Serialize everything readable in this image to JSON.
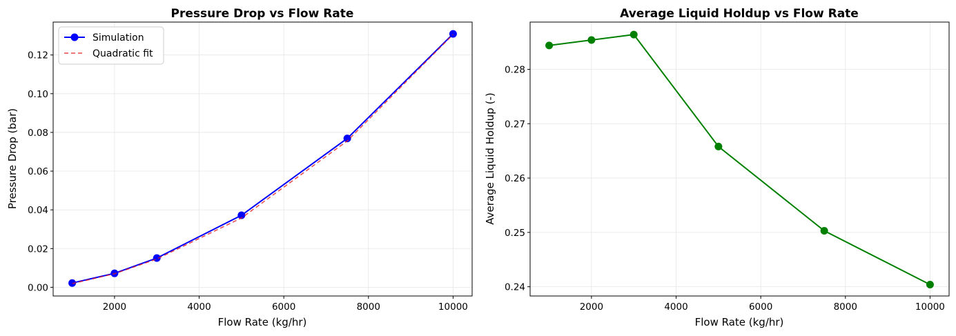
{
  "chart_data": [
    {
      "type": "line",
      "title": "Pressure Drop vs Flow Rate",
      "xlabel": "Flow Rate (kg/hr)",
      "ylabel": "Pressure Drop (bar)",
      "xlim": [
        550,
        10450
      ],
      "ylim": [
        -0.0045,
        0.137
      ],
      "xticks": [
        2000,
        4000,
        6000,
        8000,
        10000
      ],
      "xtick_labels": [
        "2000",
        "4000",
        "6000",
        "8000",
        "10000"
      ],
      "yticks": [
        0.0,
        0.02,
        0.04,
        0.06,
        0.08,
        0.1,
        0.12
      ],
      "ytick_labels": [
        "0.00",
        "0.02",
        "0.04",
        "0.06",
        "0.08",
        "0.10",
        "0.12"
      ],
      "grid": true,
      "legend_position": "top-left",
      "x": [
        1000,
        2000,
        3000,
        5000,
        7500,
        10000
      ],
      "series": [
        {
          "name": "Simulation",
          "values": [
            0.0022,
            0.0072,
            0.0151,
            0.0372,
            0.0769,
            0.1309
          ],
          "color": "#0000ff",
          "style": "solid",
          "marker": "circle"
        },
        {
          "name": "Quadratic fit",
          "values": [
            0.0019,
            0.007,
            0.0146,
            0.0358,
            0.0756,
            0.1306
          ],
          "color": "#e41a1c",
          "style": "dashed",
          "marker": "none"
        }
      ]
    },
    {
      "type": "line",
      "title": "Average Liquid Holdup vs Flow Rate",
      "xlabel": "Flow Rate (kg/hr)",
      "ylabel": "Average Liquid Holdup (-)",
      "xlim": [
        550,
        10450
      ],
      "ylim": [
        0.2383,
        0.2887
      ],
      "xticks": [
        2000,
        4000,
        6000,
        8000,
        10000
      ],
      "xtick_labels": [
        "2000",
        "4000",
        "6000",
        "8000",
        "10000"
      ],
      "yticks": [
        0.24,
        0.25,
        0.26,
        0.27,
        0.28
      ],
      "ytick_labels": [
        "0.24",
        "0.25",
        "0.26",
        "0.27",
        "0.28"
      ],
      "grid": true,
      "x": [
        1000,
        2000,
        3000,
        5000,
        7500,
        10000
      ],
      "series": [
        {
          "values": [
            0.2844,
            0.2854,
            0.2864,
            0.2658,
            0.2503,
            0.2404
          ],
          "color": "#008000",
          "style": "solid",
          "marker": "circle"
        }
      ]
    }
  ]
}
